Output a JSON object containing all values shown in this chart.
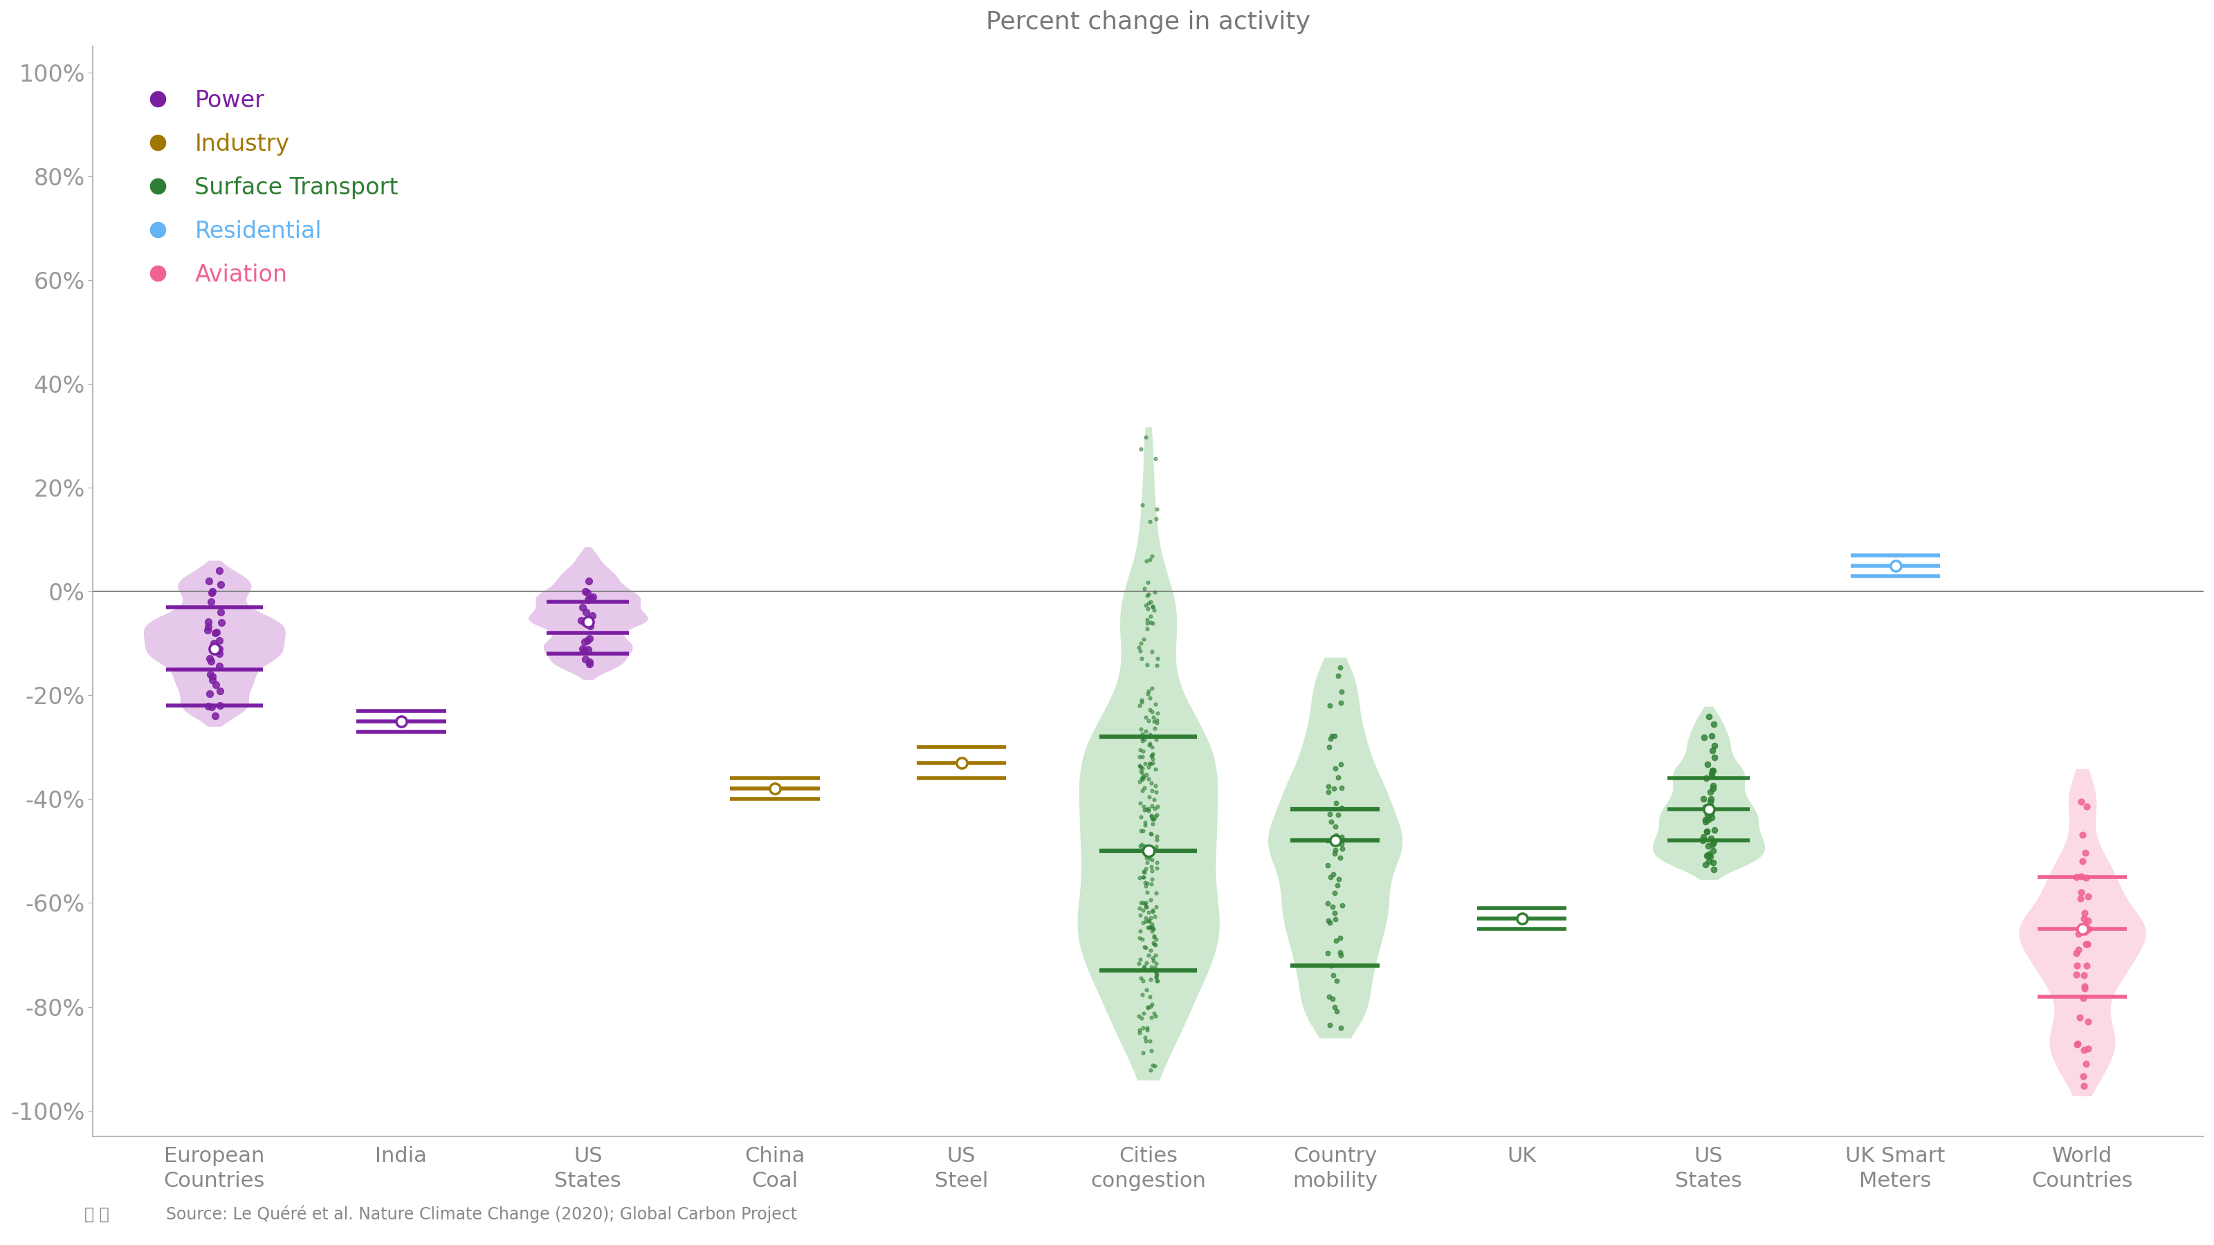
{
  "title": "Percent change in activity",
  "source_text": "Source: Le Quéré et al. Nature Climate Change (2020); Global Carbon Project",
  "ylim": [
    -1.05,
    1.05
  ],
  "yticks": [
    -1.0,
    -0.8,
    -0.6,
    -0.4,
    -0.2,
    0.0,
    0.2,
    0.4,
    0.6,
    0.8,
    1.0
  ],
  "ytick_labels": [
    "-100%",
    "-80%",
    "-60%",
    "-40%",
    "-20%",
    "0%",
    "20%",
    "40%",
    "60%",
    "80%",
    "100%"
  ],
  "categories": [
    "European\nCountries",
    "India",
    "US\nStates",
    "China\nCoal",
    "US\nSteel",
    "Cities\ncongestion",
    "Country\nmobility",
    "UK",
    "US\nStates",
    "UK Smart\nMeters",
    "World\nCountries"
  ],
  "category_x": [
    0,
    1,
    2,
    3,
    4,
    5,
    6,
    7,
    8,
    9,
    10
  ],
  "legend": [
    {
      "label": "Power",
      "color": "#7B1FA2"
    },
    {
      "label": "Industry",
      "color": "#A07800"
    },
    {
      "label": "Surface Transport",
      "color": "#2E7D32"
    },
    {
      "label": "Residential",
      "color": "#64B5F6"
    },
    {
      "label": "Aviation",
      "color": "#F06292"
    }
  ],
  "power_color": "#7B1FA2",
  "power_violin_color": "#CE93D8",
  "industry_color": "#A07800",
  "surface_color": "#2E7D32",
  "surface_violin_color": "#A5D6A7",
  "residential_color": "#64B5F6",
  "aviation_color": "#F06292",
  "aviation_violin_color": "#F8BBD0",
  "background_color": "#FFFFFF",
  "axis_color": "#AAAAAA",
  "zero_line_color": "#888888",
  "ec_mean": -0.15,
  "ec_q1": -0.22,
  "ec_q3": -0.03,
  "india_mean": -0.25,
  "india_q1": -0.27,
  "india_q3": -0.23,
  "us_power_mean": -0.08,
  "us_power_q1": -0.12,
  "us_power_q3": -0.02,
  "china_mean": -0.38,
  "china_q1": -0.4,
  "china_q3": -0.36,
  "steel_mean": -0.33,
  "steel_q1": -0.36,
  "steel_q3": -0.3,
  "cong_q1": -0.73,
  "cong_q3": -0.28,
  "cong_mean": -0.5,
  "mob_q1": -0.72,
  "mob_q3": -0.42,
  "mob_mean": -0.48,
  "uk_mean": -0.63,
  "uk_q1": -0.65,
  "uk_q3": -0.61,
  "us_st_mean": -0.42,
  "us_st_q1": -0.48,
  "us_st_q3": -0.36,
  "smart_mean": 0.05,
  "smart_q1": 0.03,
  "smart_q3": 0.07,
  "world_mean": -0.65,
  "world_q1": -0.78,
  "world_q3": -0.55
}
